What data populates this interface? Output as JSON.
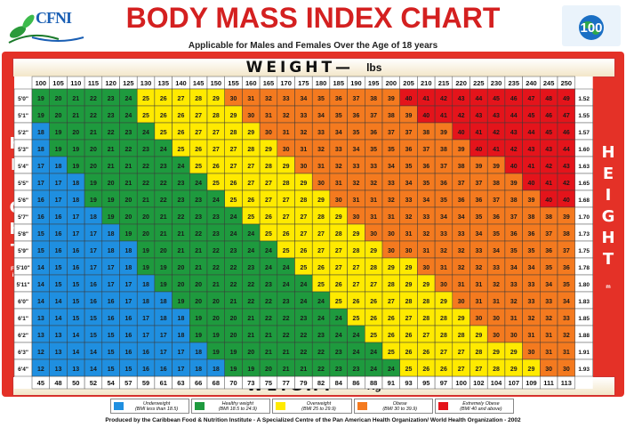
{
  "header": {
    "logo_text": "CFNI",
    "title": "BODY MASS INDEX CHART",
    "subtitle": "Applicable for Males and Females Over the Age of 18 years",
    "badge_text": "100"
  },
  "axes": {
    "weight_top": "WEIGHT—",
    "weight_top_unit": "lbs",
    "weight_bottom": "WEIGHT—",
    "weight_bottom_unit": "Kg",
    "height_left": "HEIGHT",
    "height_left_unit": "Ft & ins",
    "height_right": "HEIGHT",
    "height_right_unit": "m"
  },
  "legend": [
    {
      "label": "Underweight",
      "range": "(BMI less than 18.5)",
      "color": "#1f8fe0"
    },
    {
      "label": "Healthy weight",
      "range": "(BMI 18.5 to 24.9)",
      "color": "#1e9a3e"
    },
    {
      "label": "Overweight",
      "range": "(BMI 25 to 29.9)",
      "color": "#ffea00"
    },
    {
      "label": "Obese",
      "range": "(BMI 30 to 39.9)",
      "color": "#f47a1f"
    },
    {
      "label": "Extremely Obese",
      "range": "(BMI 40 and above)",
      "color": "#e4141b"
    }
  ],
  "footer": "Produced by the Caribbean Food & Nutrition Institute - A Specialized Centre of the Pan American Health Organization/ World Health Organization - 2002",
  "colors": {
    "frame": "#e43127",
    "underweight": "#1f8fe0",
    "healthy": "#1e9a3e",
    "overweight": "#ffea00",
    "obese": "#f47a1f",
    "extreme": "#e4141b",
    "title": "#d42020"
  },
  "chart_data": {
    "type": "heatmap",
    "title": "BODY MASS INDEX CHART",
    "xlabel": "WEIGHT— lbs",
    "ylabel": "HEIGHT",
    "weights_lbs": [
      100,
      105,
      110,
      115,
      120,
      125,
      130,
      135,
      140,
      145,
      150,
      155,
      160,
      165,
      170,
      175,
      180,
      185,
      190,
      195,
      200,
      205,
      210,
      215,
      220,
      225,
      230,
      235,
      240,
      245,
      250
    ],
    "weights_kg": [
      45,
      48,
      50,
      52,
      54,
      57,
      59,
      61,
      63,
      66,
      68,
      70,
      73,
      75,
      77,
      79,
      82,
      84,
      86,
      88,
      91,
      93,
      95,
      97,
      100,
      102,
      104,
      107,
      109,
      111,
      113
    ],
    "heights_ft": [
      "5'0\"",
      "5'1\"",
      "5'2\"",
      "5'3\"",
      "5'4\"",
      "5'5\"",
      "5'6\"",
      "5'7\"",
      "5'8\"",
      "5'9\"",
      "5'10\"",
      "5'11\"",
      "6'0\"",
      "6'1\"",
      "6'2\"",
      "6'3\"",
      "6'4\""
    ],
    "heights_m": [
      "1.52",
      "1.55",
      "1.57",
      "1.60",
      "1.63",
      "1.65",
      "1.68",
      "1.70",
      "1.73",
      "1.75",
      "1.78",
      "1.80",
      "1.83",
      "1.85",
      "1.88",
      "1.91",
      "1.93"
    ],
    "bmi": [
      [
        19,
        20,
        21,
        22,
        23,
        24,
        25,
        26,
        27,
        28,
        29,
        30,
        31,
        32,
        33,
        34,
        35,
        36,
        37,
        38,
        39,
        40,
        41,
        42,
        43,
        44,
        45,
        46,
        47,
        48,
        49
      ],
      [
        19,
        20,
        21,
        22,
        23,
        24,
        25,
        26,
        26,
        27,
        28,
        29,
        30,
        31,
        32,
        33,
        34,
        35,
        36,
        37,
        38,
        39,
        40,
        41,
        42,
        43,
        43,
        44,
        45,
        46,
        47
      ],
      [
        18,
        19,
        20,
        21,
        22,
        23,
        24,
        25,
        26,
        27,
        27,
        28,
        29,
        30,
        31,
        32,
        33,
        34,
        35,
        36,
        37,
        37,
        38,
        39,
        40,
        41,
        42,
        43,
        44,
        45,
        46
      ],
      [
        18,
        19,
        19,
        20,
        21,
        22,
        23,
        24,
        25,
        26,
        27,
        27,
        28,
        29,
        30,
        31,
        32,
        33,
        34,
        35,
        35,
        36,
        37,
        38,
        39,
        40,
        41,
        42,
        43,
        43,
        44
      ],
      [
        17,
        18,
        19,
        20,
        21,
        21,
        22,
        23,
        24,
        25,
        26,
        27,
        27,
        28,
        29,
        30,
        31,
        32,
        33,
        33,
        34,
        35,
        36,
        37,
        38,
        39,
        39,
        40,
        41,
        42,
        43
      ],
      [
        17,
        17,
        18,
        19,
        20,
        21,
        22,
        22,
        23,
        24,
        25,
        26,
        27,
        27,
        28,
        29,
        30,
        31,
        32,
        32,
        33,
        34,
        35,
        36,
        37,
        37,
        38,
        39,
        40,
        41,
        42
      ],
      [
        16,
        17,
        18,
        19,
        19,
        20,
        21,
        22,
        23,
        23,
        24,
        25,
        26,
        27,
        27,
        28,
        29,
        30,
        31,
        31,
        32,
        33,
        34,
        35,
        36,
        36,
        37,
        38,
        39,
        40,
        40
      ],
      [
        16,
        16,
        17,
        18,
        19,
        20,
        20,
        21,
        22,
        23,
        23,
        24,
        25,
        26,
        27,
        27,
        28,
        29,
        30,
        31,
        31,
        32,
        33,
        34,
        34,
        35,
        36,
        37,
        38,
        38,
        39
      ],
      [
        15,
        16,
        17,
        17,
        18,
        19,
        20,
        21,
        21,
        22,
        23,
        24,
        24,
        25,
        26,
        27,
        27,
        28,
        29,
        30,
        30,
        31,
        32,
        33,
        33,
        34,
        35,
        36,
        36,
        37,
        38
      ],
      [
        15,
        16,
        16,
        17,
        18,
        18,
        19,
        20,
        21,
        21,
        22,
        23,
        24,
        24,
        25,
        26,
        27,
        27,
        28,
        29,
        30,
        30,
        31,
        32,
        32,
        33,
        34,
        35,
        35,
        36,
        37
      ],
      [
        14,
        15,
        16,
        17,
        17,
        18,
        19,
        19,
        20,
        21,
        22,
        22,
        23,
        24,
        24,
        25,
        26,
        27,
        27,
        28,
        29,
        29,
        30,
        31,
        32,
        32,
        33,
        34,
        34,
        35,
        36
      ],
      [
        14,
        15,
        15,
        16,
        17,
        17,
        18,
        19,
        20,
        20,
        21,
        22,
        22,
        23,
        24,
        24,
        25,
        26,
        27,
        27,
        28,
        29,
        29,
        30,
        31,
        31,
        32,
        33,
        33,
        34,
        35
      ],
      [
        14,
        14,
        15,
        16,
        16,
        17,
        18,
        18,
        19,
        20,
        20,
        21,
        22,
        22,
        23,
        24,
        24,
        25,
        26,
        26,
        27,
        28,
        28,
        29,
        30,
        31,
        31,
        32,
        33,
        33,
        34
      ],
      [
        13,
        14,
        15,
        15,
        16,
        16,
        17,
        18,
        18,
        19,
        20,
        20,
        21,
        22,
        22,
        23,
        24,
        24,
        25,
        26,
        26,
        27,
        28,
        28,
        29,
        30,
        30,
        31,
        32,
        32,
        33
      ],
      [
        13,
        13,
        14,
        15,
        15,
        16,
        17,
        17,
        18,
        19,
        19,
        20,
        21,
        21,
        22,
        22,
        23,
        24,
        24,
        25,
        26,
        26,
        27,
        28,
        28,
        29,
        30,
        30,
        31,
        31,
        32
      ],
      [
        12,
        13,
        14,
        14,
        15,
        16,
        16,
        17,
        17,
        18,
        19,
        19,
        20,
        21,
        21,
        22,
        22,
        23,
        24,
        24,
        25,
        26,
        26,
        27,
        27,
        28,
        29,
        29,
        30,
        31,
        31
      ],
      [
        12,
        13,
        13,
        14,
        15,
        15,
        16,
        16,
        17,
        18,
        18,
        19,
        19,
        20,
        21,
        21,
        22,
        23,
        23,
        24,
        24,
        25,
        26,
        26,
        27,
        27,
        28,
        29,
        29,
        30,
        30
      ]
    ],
    "categories": [
      "Underweight",
      "Healthy weight",
      "Overweight",
      "Obese",
      "Extremely Obese"
    ]
  }
}
